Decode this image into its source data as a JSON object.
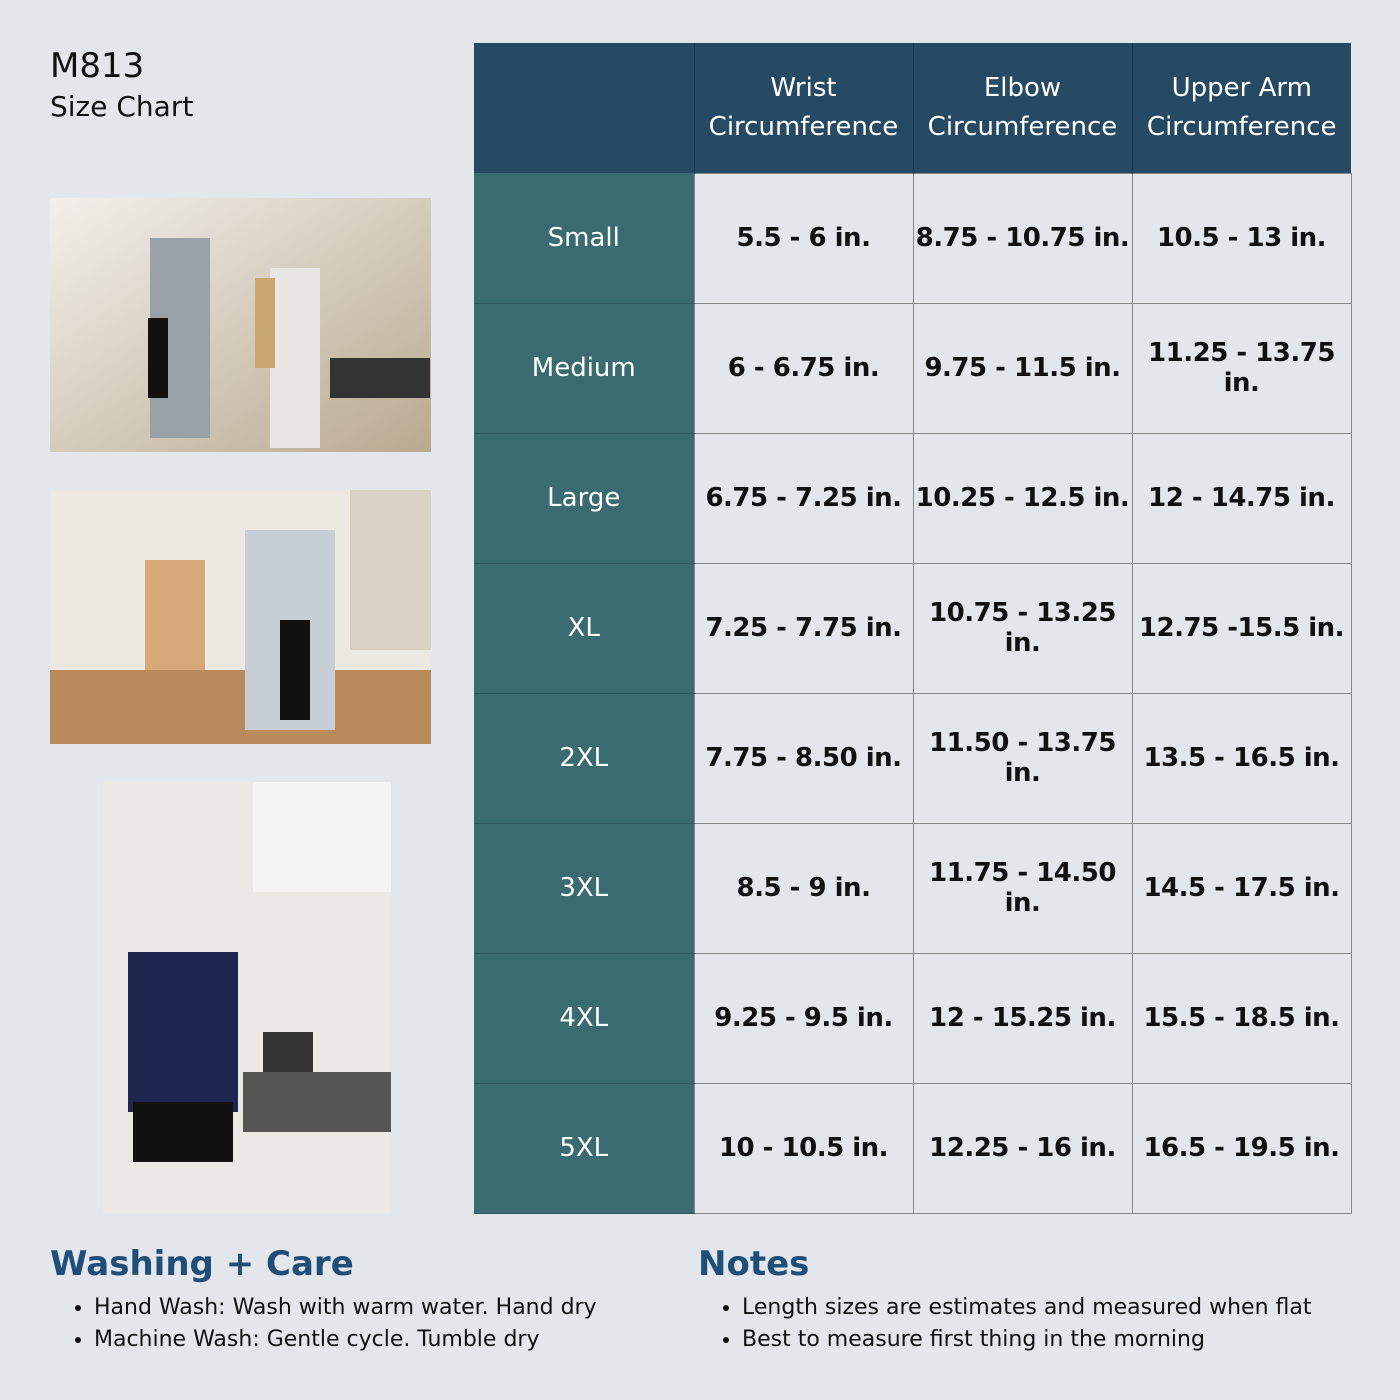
{
  "header": {
    "title": "M813",
    "subtitle": "Size Chart"
  },
  "table": {
    "columns": [
      "Wrist Circumference",
      "Elbow Circumference",
      "Upper Arm Circumference"
    ],
    "rows": [
      [
        "Small",
        "5.5 - 6 in.",
        "8.75 - 10.75 in.",
        "10.5 - 13 in."
      ],
      [
        "Medium",
        "6 - 6.75 in.",
        "9.75 - 11.5 in.",
        "11.25 - 13.75 in."
      ],
      [
        "Large",
        "6.75 - 7.25 in.",
        "10.25 - 12.5 in.",
        "12 - 14.75 in."
      ],
      [
        "XL",
        "7.25 - 7.75 in.",
        "10.75 - 13.25 in.",
        "12.75 -15.5 in."
      ],
      [
        "2XL",
        "7.75 - 8.50 in.",
        "11.50 - 13.75 in.",
        "13.5 - 16.5 in."
      ],
      [
        "3XL",
        "8.5 - 9 in.",
        "11.75 - 14.50 in.",
        "14.5 - 17.5 in."
      ],
      [
        "4XL",
        "9.25 - 9.5 in.",
        "12 - 15.25 in.",
        "15.5 - 18.5 in."
      ],
      [
        "5XL",
        "10 - 10.5 in.",
        "12.25 - 16 in.",
        "16.5 - 19.5 in."
      ]
    ]
  },
  "washing": {
    "title": "Washing + Care",
    "items": [
      "Hand Wash: Wash with warm water. Hand dry",
      "Machine Wash: Gentle cycle. Tumble dry"
    ]
  },
  "notes": {
    "title": "Notes",
    "items": [
      "Length sizes are estimates and measured when flat",
      "Best to measure first thing in the morning"
    ]
  }
}
